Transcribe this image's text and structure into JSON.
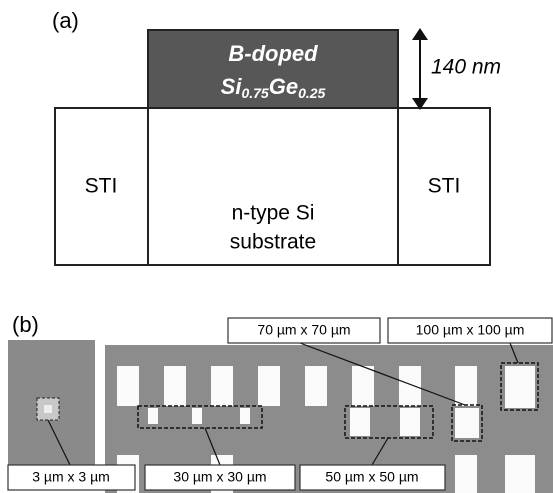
{
  "panel_a": {
    "label": "(a)",
    "layer": {
      "line1": "B-doped",
      "formula": [
        "Si",
        "0.75",
        "Ge",
        "0.25"
      ]
    },
    "thickness": "140 nm",
    "sti_left": "STI",
    "sti_right": "STI",
    "substrate": {
      "line1": "n-type Si",
      "line2": "substrate"
    }
  },
  "panel_b": {
    "label": "(b)",
    "callouts": [
      "70 µm  x 70 µm",
      "100 µm  x 100 µm",
      "3 µm x 3 µm",
      "30 µm  x 30 µm",
      "50 µm  x 50 µm"
    ]
  }
}
